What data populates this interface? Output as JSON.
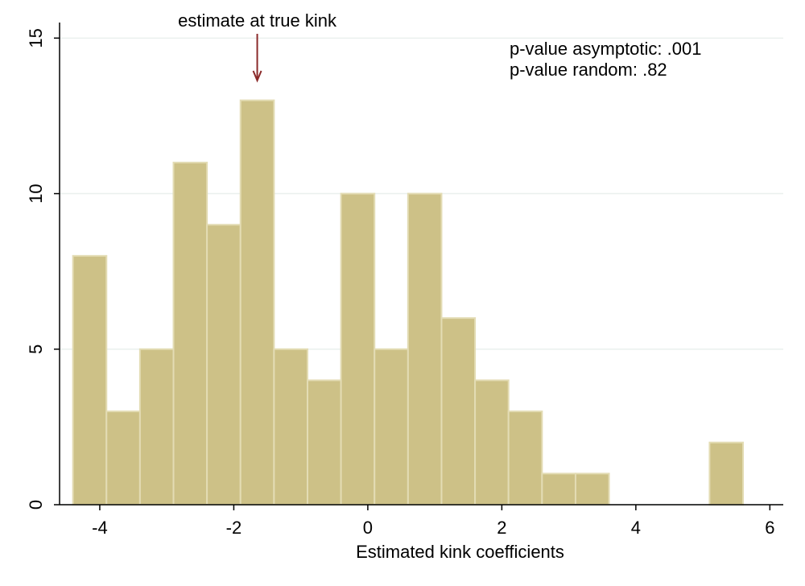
{
  "chart_data": {
    "type": "bar",
    "title": "",
    "xlabel": "Estimated kink coefficients",
    "ylabel": "",
    "xlim": [
      -4.6,
      6.2
    ],
    "ylim": [
      0,
      15.5
    ],
    "bin_width": 0.5,
    "bins": [
      {
        "start": -4.4,
        "count": 8
      },
      {
        "start": -3.9,
        "count": 3
      },
      {
        "start": -3.4,
        "count": 5
      },
      {
        "start": -2.9,
        "count": 11
      },
      {
        "start": -2.4,
        "count": 9
      },
      {
        "start": -1.9,
        "count": 13
      },
      {
        "start": -1.4,
        "count": 5
      },
      {
        "start": -0.9,
        "count": 4
      },
      {
        "start": -0.4,
        "count": 10
      },
      {
        "start": 0.1,
        "count": 5
      },
      {
        "start": 0.6,
        "count": 10
      },
      {
        "start": 1.1,
        "count": 6
      },
      {
        "start": 1.6,
        "count": 4
      },
      {
        "start": 2.1,
        "count": 3
      },
      {
        "start": 2.6,
        "count": 1
      },
      {
        "start": 3.1,
        "count": 1
      },
      {
        "start": 3.6,
        "count": 0
      },
      {
        "start": 4.1,
        "count": 0
      },
      {
        "start": 4.6,
        "count": 0
      },
      {
        "start": 5.1,
        "count": 2
      }
    ],
    "x_ticks": [
      -4,
      -2,
      0,
      2,
      4,
      6
    ],
    "x_tick_labels": [
      "-4",
      "-2",
      "0",
      "2",
      "4",
      "6"
    ],
    "y_ticks": [
      0,
      5,
      10,
      15
    ],
    "y_tick_labels": [
      "0",
      "5",
      "10",
      "15"
    ],
    "grid": true,
    "annotations": {
      "arrow_label": "estimate at true kink",
      "arrow_x": -1.65,
      "pvalue_asymptotic": "p-value asymptotic: .001",
      "pvalue_random": "p-value random: .82"
    },
    "colors": {
      "bar_fill": "#cdc187",
      "bar_stroke": "#e3dcb4",
      "arrow": "#8b2a2a",
      "grid": "#eaf0ee",
      "axis": "#000000"
    }
  }
}
